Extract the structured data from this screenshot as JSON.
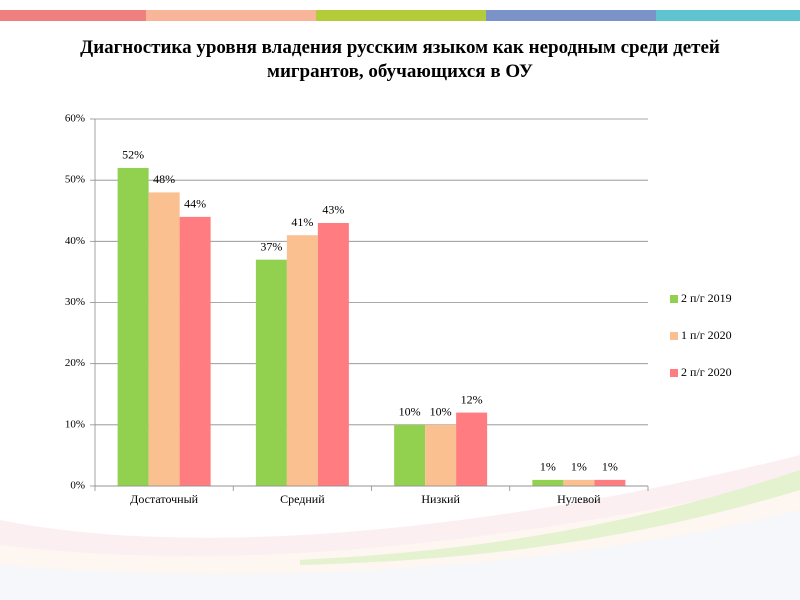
{
  "chart_data": {
    "type": "bar",
    "title": "Диагностика уровня владения русским языком как неродным среди детей мигрантов, обучающихся в ОУ",
    "categories": [
      "Достаточный",
      "Средний",
      "Низкий",
      "Нулевой"
    ],
    "series": [
      {
        "name": "2 п/г 2019",
        "color": "#92d050",
        "values": [
          52,
          37,
          10,
          1
        ],
        "value_labels": [
          "52%",
          "37%",
          "10%",
          "1%"
        ]
      },
      {
        "name": "1 п/г 2020",
        "color": "#fac090",
        "values": [
          48,
          41,
          10,
          1
        ],
        "value_labels": [
          "48%",
          "41%",
          "10%",
          "1%"
        ]
      },
      {
        "name": "2 п/г 2020",
        "color": "#ff7c80",
        "values": [
          44,
          43,
          12,
          1
        ],
        "value_labels": [
          "44%",
          "43%",
          "12%",
          "1%"
        ]
      }
    ],
    "ylim": [
      0,
      60
    ],
    "yticks": [
      {
        "value": 0,
        "label": "0%"
      },
      {
        "value": 10,
        "label": "10%"
      },
      {
        "value": 20,
        "label": "20%"
      },
      {
        "value": 30,
        "label": "30%"
      },
      {
        "value": 40,
        "label": "40%"
      },
      {
        "value": 50,
        "label": "50%"
      },
      {
        "value": 60,
        "label": "60%"
      }
    ],
    "grid": true,
    "legend": "right"
  }
}
